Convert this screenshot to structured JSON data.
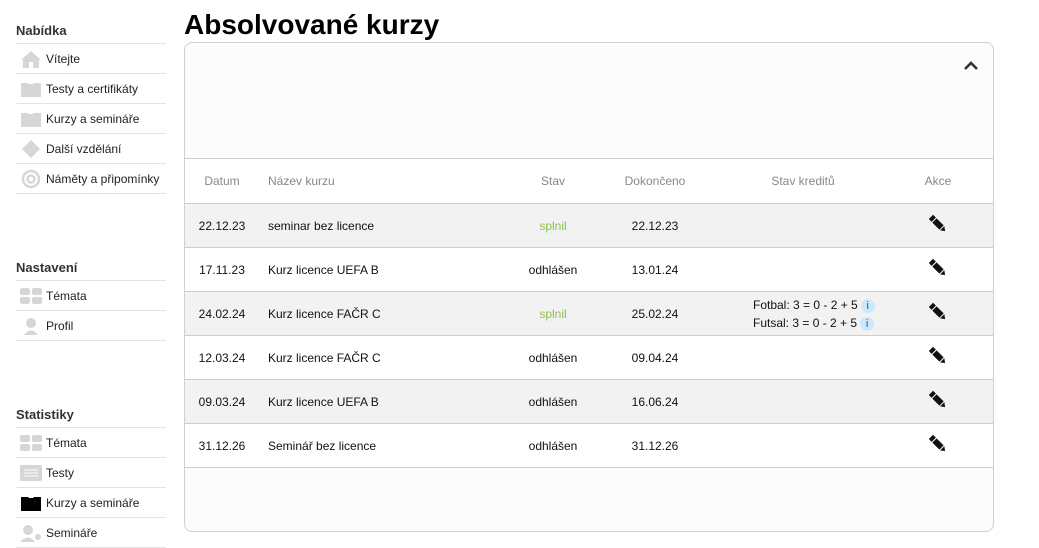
{
  "sidebar": {
    "sections": [
      {
        "title": "Nabídka",
        "items": [
          {
            "label": "Vítejte",
            "icon": "home-icon"
          },
          {
            "label": "Testy a certifikáty",
            "icon": "folder-icon"
          },
          {
            "label": "Kurzy a semináře",
            "icon": "folder-icon"
          },
          {
            "label": "Další vzdělání",
            "icon": "diamond-icon"
          },
          {
            "label": "Náměty a připomínky",
            "icon": "at-icon"
          }
        ]
      },
      {
        "title": "Nastavení",
        "items": [
          {
            "label": "Témata",
            "icon": "grid-icon"
          },
          {
            "label": "Profil",
            "icon": "user-icon"
          }
        ]
      },
      {
        "title": "Statistiky",
        "items": [
          {
            "label": "Témata",
            "icon": "grid-icon"
          },
          {
            "label": "Testy",
            "icon": "list-icon"
          },
          {
            "label": "Kurzy a semináře",
            "icon": "folder-icon",
            "active": true
          },
          {
            "label": "Semináře",
            "icon": "users-icon"
          }
        ]
      }
    ]
  },
  "page": {
    "title": "Absolvované kurzy",
    "collapse_icon": "chevron-up-icon"
  },
  "table": {
    "headers": [
      "Datum",
      "Název kurzu",
      "Stav",
      "Dokončeno",
      "Stav kreditů",
      "Akce"
    ],
    "rows": [
      {
        "datum": "22.12.23",
        "nazev": "seminar bez licence",
        "stav": "splnil",
        "dokonceno": "22.12.23",
        "kredity": []
      },
      {
        "datum": "17.11.23",
        "nazev": "Kurz licence UEFA B",
        "stav": "odhlášen",
        "dokonceno": "13.01.24",
        "kredity": []
      },
      {
        "datum": "24.02.24",
        "nazev": "Kurz licence FAČR C",
        "stav": "splnil",
        "dokonceno": "25.02.24",
        "kredity": [
          "Fotbal: 3 = 0 - 2 + 5",
          "Futsal: 3 = 0 - 2 + 5"
        ]
      },
      {
        "datum": "12.03.24",
        "nazev": "Kurz licence FAČR C",
        "stav": "odhlášen",
        "dokonceno": "09.04.24",
        "kredity": []
      },
      {
        "datum": "09.03.24",
        "nazev": "Kurz licence UEFA B",
        "stav": "odhlášen",
        "dokonceno": "16.06.24",
        "kredity": []
      },
      {
        "datum": "31.12.26",
        "nazev": "Seminář bez licence",
        "stav": "odhlášen",
        "dokonceno": "31.12.26",
        "kredity": []
      }
    ],
    "info_label": "i",
    "colors": {
      "splnil": "#8bc34a",
      "odhlasen": "#111111"
    }
  }
}
